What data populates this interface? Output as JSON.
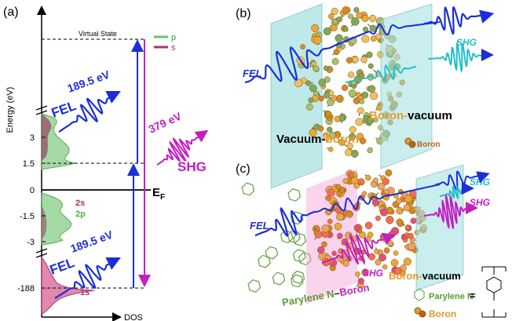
{
  "panel_a": {
    "label": "(a)",
    "y_axis_label": "Energy (eV)",
    "x_axis_label": "DOS",
    "virtual_state": "Virtual State",
    "legend": [
      "p",
      "s"
    ],
    "ticks": [
      "3",
      "1.5",
      "0",
      "-1.5",
      "-3",
      "-188"
    ],
    "fermi_label": "E",
    "fermi_subscript": "F",
    "fel_upper": {
      "label": "FEL",
      "energy": "189.5 eV"
    },
    "fel_lower": {
      "label": "FEL",
      "energy": "189.5 eV"
    },
    "shg": {
      "energy": "379 eV",
      "label": "SHG"
    },
    "orbitals": [
      "2s",
      "2p",
      "1s"
    ]
  },
  "panel_b": {
    "label": "(b)",
    "fel": "FEL",
    "shg": "SHG",
    "interface_left": [
      "Vacuum-",
      "boron"
    ],
    "interface_right": [
      "Boron-",
      "vacuum"
    ],
    "legend": "Boron"
  },
  "panel_c": {
    "label": "(c)",
    "fel": "FEL",
    "shg": [
      "SHG",
      "SHG",
      "SHG"
    ],
    "interface_left": [
      "Parylene N",
      "–",
      "Boron"
    ],
    "interface_right": [
      "Boron-",
      "vacuum"
    ],
    "legend": [
      "Parylene N",
      "=",
      "Boron"
    ]
  }
}
